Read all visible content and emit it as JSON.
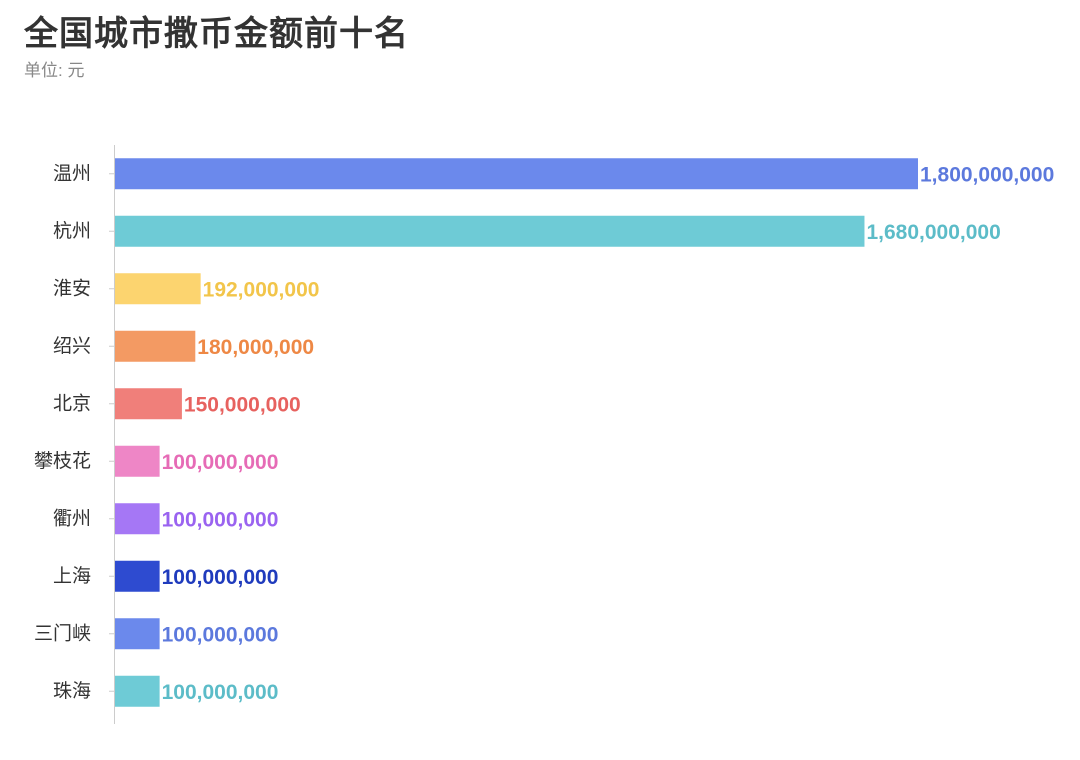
{
  "chart_data": {
    "type": "bar",
    "orientation": "horizontal",
    "title": "全国城市撒币金额前十名",
    "subtitle": "单位: 元",
    "categories": [
      "温州",
      "杭州",
      "淮安",
      "绍兴",
      "北京",
      "攀枝花",
      "衢州",
      "上海",
      "三门峡",
      "珠海"
    ],
    "values": [
      1800000000,
      1680000000,
      192000000,
      180000000,
      150000000,
      100000000,
      100000000,
      100000000,
      100000000,
      100000000
    ],
    "value_labels": [
      "1,800,000,000",
      "1,680,000,000",
      "192,000,000",
      "180,000,000",
      "150,000,000",
      "100,000,000",
      "100,000,000",
      "100,000,000",
      "100,000,000",
      "100,000,000"
    ],
    "colors": [
      "#6b89ec",
      "#6ecbd6",
      "#fcd46f",
      "#f39a63",
      "#f07f7a",
      "#ee86c6",
      "#a577f5",
      "#2e4bd0",
      "#6b89ec",
      "#6ecbd6"
    ],
    "label_colors": [
      "#5c79dd",
      "#5cbcc8",
      "#f2c54a",
      "#ee8845",
      "#e7625f",
      "#e66bb6",
      "#9a63f0",
      "#1f3bbd",
      "#5c79dd",
      "#5cbcc8"
    ],
    "xlim": [
      0,
      1800000000
    ],
    "grid": false,
    "legend": "none"
  }
}
